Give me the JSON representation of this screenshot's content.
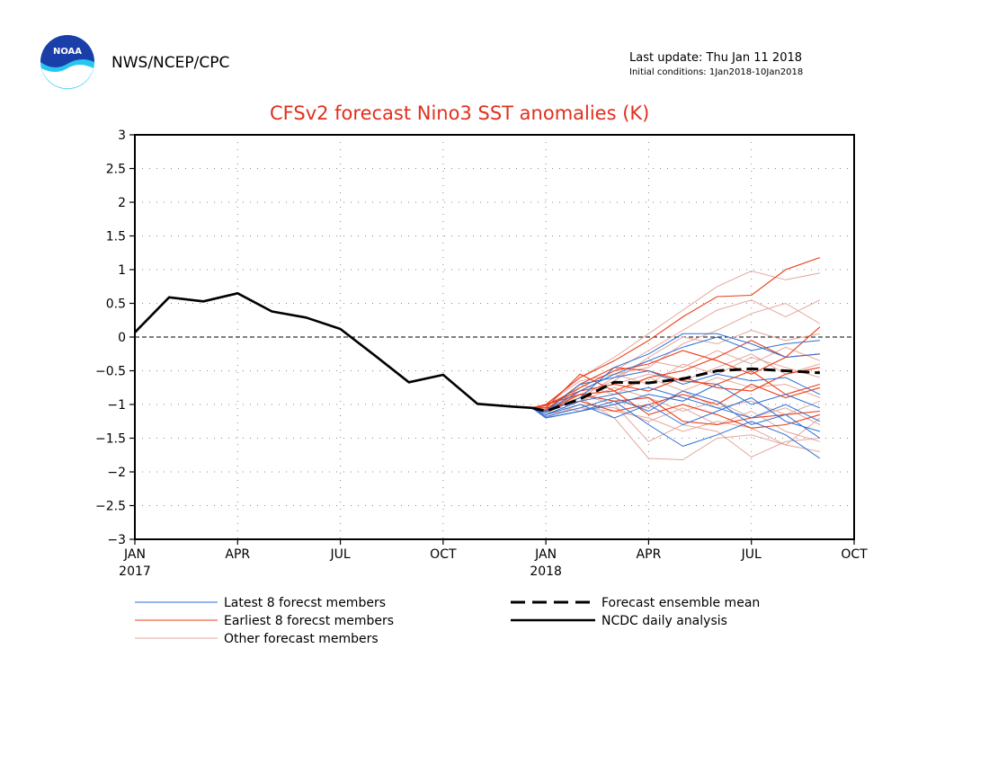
{
  "header": {
    "org": "NWS/NCEP/CPC",
    "last_update": "Last update: Thu Jan 11 2018",
    "initial_conditions": "Initial conditions:  1Jan2018-10Jan2018",
    "logo_text": "NOAA"
  },
  "colors": {
    "title": "#e0301e",
    "latest": "#2a6fd6",
    "earliest": "#ee3c18",
    "other": "#e3a89c",
    "analysis": "#000000",
    "grid": "#888888"
  },
  "chart_data": {
    "type": "line",
    "title": "CFSv2 forecast Nino3 SST anomalies (K)",
    "xlim": [
      0,
      21
    ],
    "ylim": [
      -3,
      3
    ],
    "yticks": [
      3,
      2.5,
      2,
      1.5,
      1,
      0.5,
      0,
      -0.5,
      -1,
      -1.5,
      -2,
      -2.5,
      -3
    ],
    "ytick_labels": [
      "3",
      "2.5",
      "2",
      "1.5",
      "1",
      "0.5",
      "0",
      "−0.5",
      "−1",
      "−1.5",
      "−2",
      "−2.5",
      "−3"
    ],
    "xticks": [
      {
        "x": 0,
        "label": "JAN",
        "year": "2017"
      },
      {
        "x": 3,
        "label": "APR",
        "year": ""
      },
      {
        "x": 6,
        "label": "JUL",
        "year": ""
      },
      {
        "x": 9,
        "label": "OCT",
        "year": ""
      },
      {
        "x": 12,
        "label": "JAN",
        "year": "2018"
      },
      {
        "x": 15,
        "label": "APR",
        "year": ""
      },
      {
        "x": 18,
        "label": "JUL",
        "year": ""
      },
      {
        "x": 21,
        "label": "OCT",
        "year": ""
      }
    ],
    "grid": true,
    "zero_line": "dashed",
    "legend": [
      {
        "label": "Latest 8 forecst members",
        "style": "latest"
      },
      {
        "label": "Earliest 8 forecst members",
        "style": "earliest"
      },
      {
        "label": "Other forecast members",
        "style": "other"
      },
      {
        "label": "Forecast ensemble mean",
        "style": "mean"
      },
      {
        "label": "NCDC daily analysis",
        "style": "analysis"
      }
    ],
    "series": {
      "analysis": {
        "x": [
          0,
          1,
          2,
          3,
          4,
          5,
          6,
          7,
          8,
          9,
          10,
          11,
          11.6
        ],
        "y": [
          0.07,
          0.59,
          0.53,
          0.65,
          0.38,
          0.29,
          0.12,
          -0.27,
          -0.67,
          -0.56,
          -0.99,
          -1.03,
          -1.05
        ]
      },
      "ensemble_mean": {
        "x": [
          11.6,
          12,
          13,
          14,
          15,
          16,
          17,
          18,
          19,
          20
        ],
        "y": [
          -1.05,
          -1.1,
          -0.92,
          -0.67,
          -0.68,
          -0.62,
          -0.5,
          -0.47,
          -0.5,
          -0.53
        ]
      },
      "latest_members": [
        {
          "x": [
            11.6,
            12,
            13,
            14,
            15,
            16,
            17,
            18,
            19,
            20
          ],
          "y": [
            -1.05,
            -1.2,
            -1.1,
            -0.95,
            -1.3,
            -1.62,
            -1.45,
            -1.25,
            -1.45,
            -1.8
          ]
        },
        {
          "x": [
            11.6,
            12,
            13,
            14,
            15,
            16,
            17,
            18,
            19,
            20
          ],
          "y": [
            -1.05,
            -1.15,
            -0.95,
            -0.85,
            -0.75,
            -0.9,
            -1.05,
            -1.2,
            -1.0,
            -1.25
          ]
        },
        {
          "x": [
            11.6,
            12,
            13,
            14,
            15,
            16,
            17,
            18,
            19,
            20
          ],
          "y": [
            -1.05,
            -1.1,
            -0.8,
            -0.55,
            -0.35,
            -0.15,
            0.0,
            -0.2,
            -0.1,
            -0.05
          ]
        },
        {
          "x": [
            11.6,
            12,
            13,
            14,
            15,
            16,
            17,
            18,
            19,
            20
          ],
          "y": [
            -1.05,
            -1.12,
            -0.9,
            -0.45,
            -0.25,
            0.05,
            0.05,
            -0.1,
            -0.3,
            -0.25
          ]
        },
        {
          "x": [
            11.6,
            12,
            13,
            14,
            15,
            16,
            17,
            18,
            19,
            20
          ],
          "y": [
            -1.05,
            -1.18,
            -1.05,
            -0.9,
            -1.1,
            -0.8,
            -0.95,
            -1.3,
            -1.15,
            -1.5
          ]
        },
        {
          "x": [
            11.6,
            12,
            13,
            14,
            15,
            16,
            17,
            18,
            19,
            20
          ],
          "y": [
            -1.05,
            -1.1,
            -0.7,
            -0.6,
            -0.5,
            -0.7,
            -0.55,
            -0.65,
            -0.6,
            -0.85
          ]
        },
        {
          "x": [
            11.6,
            12,
            13,
            14,
            15,
            16,
            17,
            18,
            19,
            20
          ],
          "y": [
            -1.05,
            -1.15,
            -1.0,
            -1.2,
            -1.0,
            -1.3,
            -1.1,
            -0.9,
            -1.25,
            -1.4
          ]
        },
        {
          "x": [
            11.6,
            12,
            13,
            14,
            15,
            16,
            17,
            18,
            19,
            20
          ],
          "y": [
            -1.05,
            -1.2,
            -1.1,
            -1.0,
            -0.85,
            -0.95,
            -0.7,
            -1.0,
            -0.85,
            -1.05
          ]
        }
      ],
      "earliest_members": [
        {
          "x": [
            11.6,
            12,
            13,
            14,
            15,
            16,
            17,
            18,
            19,
            20
          ],
          "y": [
            -1.05,
            -1.0,
            -0.6,
            -0.35,
            -0.05,
            0.3,
            0.6,
            0.62,
            1.0,
            1.18
          ]
        },
        {
          "x": [
            11.6,
            12,
            13,
            14,
            15,
            16,
            17,
            18,
            19,
            20
          ],
          "y": [
            -1.05,
            -1.05,
            -0.55,
            -0.8,
            -0.6,
            -0.5,
            -0.3,
            -0.05,
            -0.3,
            0.15
          ]
        },
        {
          "x": [
            11.6,
            12,
            13,
            14,
            15,
            16,
            17,
            18,
            19,
            20
          ],
          "y": [
            -1.05,
            -1.0,
            -0.85,
            -0.95,
            -0.9,
            -1.25,
            -1.3,
            -1.2,
            -1.15,
            -1.1
          ]
        },
        {
          "x": [
            11.6,
            12,
            13,
            14,
            15,
            16,
            17,
            18,
            19,
            20
          ],
          "y": [
            -1.05,
            -1.08,
            -0.7,
            -0.45,
            -0.5,
            -0.65,
            -0.7,
            -0.5,
            -0.85,
            -0.7
          ]
        },
        {
          "x": [
            11.6,
            12,
            13,
            14,
            15,
            16,
            17,
            18,
            19,
            20
          ],
          "y": [
            -1.05,
            -1.0,
            -0.8,
            -0.7,
            -0.8,
            -0.6,
            -0.75,
            -0.8,
            -0.55,
            -0.45
          ]
        },
        {
          "x": [
            11.6,
            12,
            13,
            14,
            15,
            16,
            17,
            18,
            19,
            20
          ],
          "y": [
            -1.05,
            -1.05,
            -0.95,
            -1.1,
            -1.0,
            -0.85,
            -1.0,
            -0.7,
            -0.9,
            -0.75
          ]
        },
        {
          "x": [
            11.6,
            12,
            13,
            14,
            15,
            16,
            17,
            18,
            19,
            20
          ],
          "y": [
            -1.05,
            -1.02,
            -0.75,
            -0.5,
            -0.4,
            -0.2,
            -0.35,
            -0.55,
            -0.3,
            -0.25
          ]
        },
        {
          "x": [
            11.6,
            12,
            13,
            14,
            15,
            16,
            17,
            18,
            19,
            20
          ],
          "y": [
            -1.05,
            -1.1,
            -0.85,
            -0.8,
            -1.15,
            -1.0,
            -1.15,
            -1.35,
            -1.3,
            -1.15
          ]
        }
      ],
      "other_members": [
        {
          "x": [
            11.6,
            12,
            13,
            14,
            15,
            16,
            17,
            18,
            19,
            20
          ],
          "y": [
            -1.05,
            -1.0,
            -0.6,
            -0.3,
            0.05,
            0.4,
            0.75,
            0.98,
            0.85,
            0.95
          ]
        },
        {
          "x": [
            11.6,
            12,
            13,
            14,
            15,
            16,
            17,
            18,
            19,
            20
          ],
          "y": [
            -1.05,
            -1.1,
            -0.9,
            -1.2,
            -1.8,
            -1.82,
            -1.5,
            -1.45,
            -1.6,
            -1.7
          ]
        },
        {
          "x": [
            11.6,
            12,
            13,
            14,
            15,
            16,
            17,
            18,
            19,
            20
          ],
          "y": [
            -1.05,
            -1.05,
            -0.85,
            -1.0,
            -1.55,
            -1.3,
            -1.4,
            -1.78,
            -1.55,
            -1.5
          ]
        },
        {
          "x": [
            11.6,
            12,
            13,
            14,
            15,
            16,
            17,
            18,
            19,
            20
          ],
          "y": [
            -1.05,
            -1.12,
            -0.75,
            -0.5,
            -0.2,
            0.1,
            0.4,
            0.55,
            0.3,
            0.55
          ]
        },
        {
          "x": [
            11.6,
            12,
            13,
            14,
            15,
            16,
            17,
            18,
            19,
            20
          ],
          "y": [
            -1.05,
            -1.0,
            -0.65,
            -0.55,
            -0.45,
            -0.1,
            0.1,
            0.35,
            0.5,
            0.2
          ]
        },
        {
          "x": [
            11.6,
            12,
            13,
            14,
            15,
            16,
            17,
            18,
            19,
            20
          ],
          "y": [
            -1.05,
            -1.08,
            -0.95,
            -0.75,
            -0.9,
            -1.1,
            -0.95,
            -1.2,
            -1.05,
            -1.3
          ]
        },
        {
          "x": [
            11.6,
            12,
            13,
            14,
            15,
            16,
            17,
            18,
            19,
            20
          ],
          "y": [
            -1.05,
            -1.15,
            -1.05,
            -1.1,
            -1.2,
            -1.4,
            -1.25,
            -1.35,
            -1.6,
            -1.2
          ]
        },
        {
          "x": [
            11.6,
            12,
            13,
            14,
            15,
            16,
            17,
            18,
            19,
            20
          ],
          "y": [
            -1.05,
            -1.02,
            -0.8,
            -0.55,
            -0.7,
            -0.4,
            -0.55,
            -0.3,
            -0.45,
            -0.6
          ]
        },
        {
          "x": [
            11.6,
            12,
            13,
            14,
            15,
            16,
            17,
            18,
            19,
            20
          ],
          "y": [
            -1.05,
            -1.1,
            -0.7,
            -0.85,
            -0.6,
            -0.8,
            -0.6,
            -0.75,
            -0.7,
            -0.9
          ]
        },
        {
          "x": [
            11.6,
            12,
            13,
            14,
            15,
            16,
            17,
            18,
            19,
            20
          ],
          "y": [
            -1.05,
            -1.05,
            -0.9,
            -0.6,
            -0.35,
            -0.45,
            -0.2,
            -0.4,
            -0.15,
            -0.35
          ]
        },
        {
          "x": [
            11.6,
            12,
            13,
            14,
            15,
            16,
            17,
            18,
            19,
            20
          ],
          "y": [
            -1.05,
            -1.0,
            -1.1,
            -0.95,
            -1.05,
            -0.8,
            -1.05,
            -0.95,
            -1.15,
            -0.95
          ]
        },
        {
          "x": [
            11.6,
            12,
            13,
            14,
            15,
            16,
            17,
            18,
            19,
            20
          ],
          "y": [
            -1.05,
            -1.15,
            -0.8,
            -0.7,
            -0.55,
            -0.65,
            -0.45,
            -0.25,
            -0.55,
            -0.4
          ]
        },
        {
          "x": [
            11.6,
            12,
            13,
            14,
            15,
            16,
            17,
            18,
            19,
            20
          ],
          "y": [
            -1.05,
            -1.2,
            -1.0,
            -1.05,
            -1.25,
            -1.05,
            -1.3,
            -1.1,
            -1.4,
            -1.55
          ]
        },
        {
          "x": [
            11.6,
            12,
            13,
            14,
            15,
            16,
            17,
            18,
            19,
            20
          ],
          "y": [
            -1.05,
            -1.08,
            -0.85,
            -0.65,
            -0.3,
            0.0,
            -0.1,
            0.1,
            -0.05,
            0.05
          ]
        }
      ]
    }
  }
}
